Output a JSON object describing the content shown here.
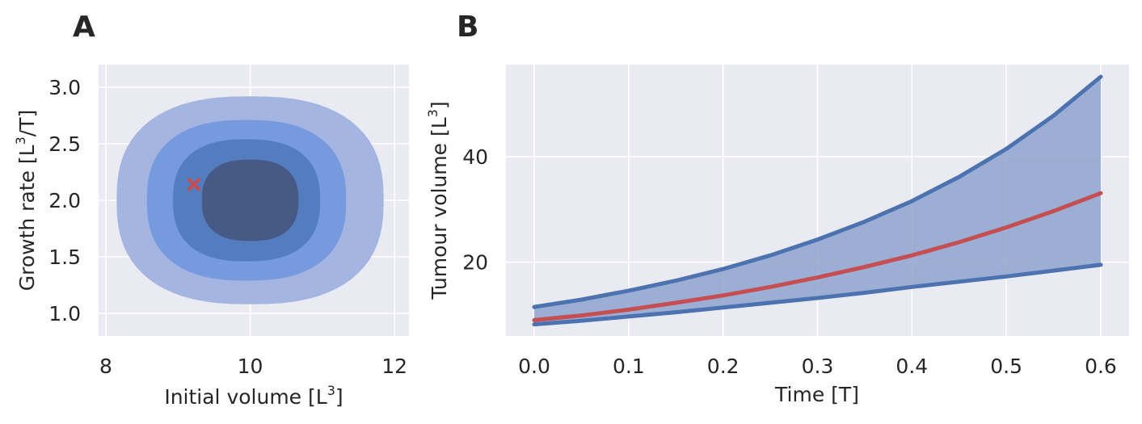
{
  "colors": {
    "background": "#eaeaf2",
    "grid": "#ffffff",
    "blue": "#4c72b0",
    "red": "#c44e52",
    "contour_levels": [
      "#a3b5e0",
      "#7799dd",
      "#547dbf",
      "#475a85"
    ],
    "band_fill": "#8ea3ce",
    "text": "#262626"
  },
  "chart_data": [
    {
      "panel": "A",
      "type": "contour",
      "xlabel": "Initial volume [L",
      "xlabel_sup": "3",
      "xlabel_end": "]",
      "ylabel": "Growth rate [L",
      "ylabel_sup": "3",
      "ylabel_end": "/T]",
      "xlim": [
        7.9,
        12.2
      ],
      "ylim": [
        0.8,
        3.2
      ],
      "xticks": [
        8,
        10,
        12
      ],
      "xtick_labels": [
        "8",
        "10",
        "12"
      ],
      "yticks": [
        1.0,
        1.5,
        2.0,
        2.5,
        3.0
      ],
      "ytick_labels": [
        "1.0",
        "1.5",
        "2.0",
        "2.5",
        "3.0"
      ],
      "grid": true,
      "contours": [
        {
          "level": 1,
          "cx": 10.0,
          "cy": 2.0,
          "rx": 1.85,
          "ry": 0.92
        },
        {
          "level": 2,
          "cx": 9.95,
          "cy": 2.0,
          "rx": 1.38,
          "ry": 0.71
        },
        {
          "level": 3,
          "cx": 9.95,
          "cy": 2.0,
          "rx": 1.02,
          "ry": 0.54
        },
        {
          "level": 4,
          "cx": 10.0,
          "cy": 2.0,
          "rx": 0.67,
          "ry": 0.36
        }
      ],
      "marker": {
        "symbol": "x",
        "x": 9.22,
        "y": 2.14
      }
    },
    {
      "panel": "B",
      "type": "line",
      "xlabel": "Time [T]",
      "ylabel": "Tumour volume [L",
      "ylabel_sup": "3",
      "ylabel_end": "]",
      "xlim": [
        -0.03,
        0.63
      ],
      "ylim": [
        6,
        57.5
      ],
      "xticks": [
        0.0,
        0.1,
        0.2,
        0.3,
        0.4,
        0.5,
        0.6
      ],
      "xtick_labels": [
        "0.0",
        "0.1",
        "0.2",
        "0.3",
        "0.4",
        "0.5",
        "0.6"
      ],
      "yticks": [
        20,
        40
      ],
      "ytick_labels": [
        "20",
        "40"
      ],
      "grid": true,
      "x": [
        0.0,
        0.05,
        0.1,
        0.15,
        0.2,
        0.25,
        0.3,
        0.35,
        0.4,
        0.45,
        0.5,
        0.55,
        0.6
      ],
      "series": [
        {
          "role": "upper",
          "values": [
            11.5,
            12.9,
            14.6,
            16.5,
            18.7,
            21.3,
            24.3,
            27.7,
            31.6,
            36.2,
            41.5,
            47.8,
            55.2
          ]
        },
        {
          "role": "median",
          "values": [
            9.0,
            9.9,
            11.0,
            12.3,
            13.7,
            15.3,
            17.1,
            19.1,
            21.3,
            23.8,
            26.6,
            29.7,
            33.1
          ]
        },
        {
          "role": "lower",
          "values": [
            8.2,
            8.9,
            9.7,
            10.5,
            11.4,
            12.3,
            13.2,
            14.2,
            15.3,
            16.3,
            17.3,
            18.4,
            19.5
          ]
        }
      ]
    }
  ],
  "panels": {
    "a_label": "A",
    "b_label": "B"
  }
}
